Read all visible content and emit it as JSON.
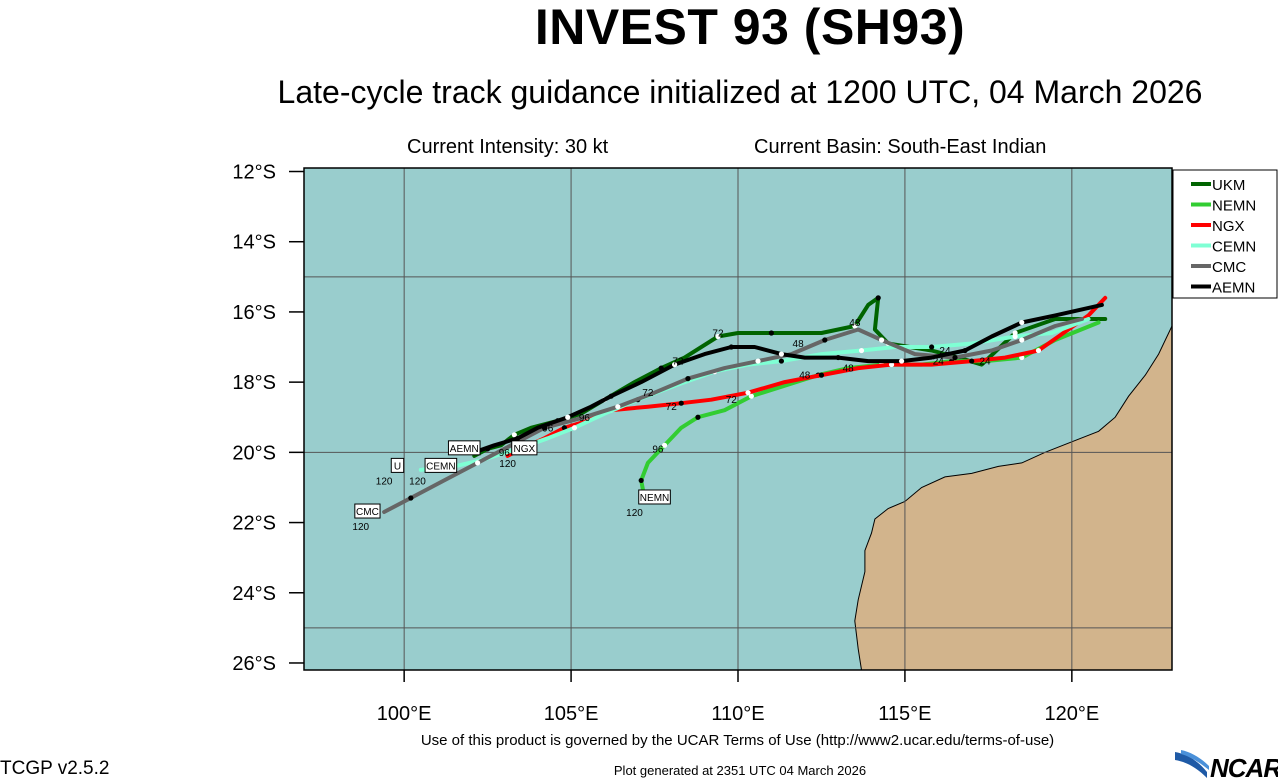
{
  "header": {
    "title": "INVEST 93 (SH93)",
    "subtitle": "Late-cycle track guidance initialized at 1200 UTC, 04 March 2026",
    "intensity": "Current Intensity: 30 kt",
    "basin": "Current Basin: South-East Indian"
  },
  "footer": {
    "terms": "Use of this product is governed by the UCAR Terms of Use (http://www2.ucar.edu/terms-of-use)",
    "generated": "Plot generated at 2351 UTC   04 March 2026",
    "version": "TCGP v2.5.2",
    "logo": "NCAR"
  },
  "colors": {
    "ocean": "#99cdcd",
    "land": "#d2b48c",
    "grid": "#555555"
  },
  "chart_data": {
    "type": "line",
    "title": "INVEST 93 (SH93)",
    "xlim": [
      97,
      123
    ],
    "ylim": [
      -26.2,
      -11.9
    ],
    "x_ticks": [
      100,
      105,
      110,
      115,
      120
    ],
    "x_tick_labels": [
      "100°E",
      "105°E",
      "110°E",
      "115°E",
      "120°E"
    ],
    "y_ticks": [
      -12,
      -14,
      -16,
      -18,
      -20,
      -22,
      -24,
      -26
    ],
    "y_tick_labels": [
      "12°S",
      "14°S",
      "16°S",
      "18°S",
      "20°S",
      "22°S",
      "24°S",
      "26°S"
    ],
    "legend_position": "right",
    "series": [
      {
        "name": "UKM",
        "color": "#006400",
        "width": 4,
        "points": [
          [
            121,
            -16.2
          ],
          [
            119.5,
            -16.2
          ],
          [
            118.3,
            -16.6
          ],
          [
            117.3,
            -17.5
          ],
          [
            116.6,
            -17.3
          ],
          [
            115.8,
            -17.1
          ],
          [
            114.5,
            -16.9
          ],
          [
            114.1,
            -16.5
          ],
          [
            114.2,
            -15.6
          ],
          [
            113.9,
            -15.8
          ],
          [
            113.5,
            -16.4
          ],
          [
            112.5,
            -16.6
          ],
          [
            111,
            -16.6
          ],
          [
            110,
            -16.6
          ],
          [
            109.4,
            -16.7
          ],
          [
            108.4,
            -17.3
          ],
          [
            107.7,
            -17.6
          ],
          [
            106.9,
            -18
          ],
          [
            106,
            -18.5
          ],
          [
            105.3,
            -18.9
          ],
          [
            104.6,
            -19.1
          ],
          [
            103.8,
            -19.3
          ],
          [
            103.3,
            -19.5
          ],
          [
            102.9,
            -19.8
          ],
          [
            102.5,
            -19.9
          ],
          [
            102.1,
            -20.1
          ]
        ],
        "labels": [
          {
            "x": 109.4,
            "y": -16.7,
            "text": "72"
          },
          {
            "x": 113.5,
            "y": -16.4,
            "text": "48"
          },
          {
            "x": 116.2,
            "y": -17.2,
            "text": "24"
          }
        ]
      },
      {
        "name": "NEMN",
        "color": "#32cd32",
        "width": 4,
        "points": [
          [
            120.8,
            -16.3
          ],
          [
            119.5,
            -16.8
          ],
          [
            118.5,
            -17.3
          ],
          [
            117.4,
            -17.4
          ],
          [
            116.4,
            -17.4
          ],
          [
            115.5,
            -17.5
          ],
          [
            114.3,
            -17.5
          ],
          [
            113.3,
            -17.6
          ],
          [
            112.4,
            -17.8
          ],
          [
            111.4,
            -18.1
          ],
          [
            110.4,
            -18.4
          ],
          [
            109.6,
            -18.8
          ],
          [
            108.8,
            -19
          ],
          [
            108.3,
            -19.3
          ],
          [
            107.8,
            -19.8
          ],
          [
            107.3,
            -20.3
          ],
          [
            107.1,
            -20.8
          ],
          [
            107.2,
            -21.3
          ]
        ],
        "labels": [
          {
            "x": 109.8,
            "y": -18.6,
            "text": "72"
          },
          {
            "x": 107.6,
            "y": -20,
            "text": "96"
          },
          {
            "x": 113.3,
            "y": -17.7,
            "text": "48"
          },
          {
            "x": 117.4,
            "y": -17.5,
            "text": "24"
          }
        ],
        "tag": {
          "x": 107.5,
          "y": -21.3,
          "text": "NEMN"
        },
        "end_label": {
          "x": 106.9,
          "y": -21.7,
          "text": "120"
        }
      },
      {
        "name": "NGX",
        "color": "#ff0000",
        "width": 4,
        "points": [
          [
            121,
            -15.6
          ],
          [
            120.5,
            -16.1
          ],
          [
            119,
            -17.1
          ],
          [
            118,
            -17.3
          ],
          [
            117,
            -17.4
          ],
          [
            115.8,
            -17.5
          ],
          [
            114.6,
            -17.5
          ],
          [
            113.6,
            -17.6
          ],
          [
            112.5,
            -17.8
          ],
          [
            111.4,
            -18
          ],
          [
            110.3,
            -18.3
          ],
          [
            109.2,
            -18.5
          ],
          [
            108.3,
            -18.6
          ],
          [
            107.3,
            -18.7
          ],
          [
            106.2,
            -18.8
          ],
          [
            105.5,
            -19.1
          ],
          [
            104.8,
            -19.3
          ],
          [
            104.2,
            -19.6
          ],
          [
            103.5,
            -19.9
          ],
          [
            103.1,
            -20.1
          ]
        ],
        "labels": [
          {
            "x": 108,
            "y": -18.8,
            "text": "72"
          },
          {
            "x": 112,
            "y": -17.9,
            "text": "48"
          },
          {
            "x": 116,
            "y": -17.5,
            "text": "24"
          },
          {
            "x": 104.3,
            "y": -19.4,
            "text": "96"
          }
        ],
        "tag": {
          "x": 103.6,
          "y": -19.9,
          "text": "NGX"
        },
        "end_label": {
          "x": 103.1,
          "y": -20.3,
          "text": "120"
        }
      },
      {
        "name": "CEMN",
        "color": "#7fffd4",
        "width": 4,
        "points": [
          [
            120.5,
            -16.2
          ],
          [
            119.4,
            -16.6
          ],
          [
            118.3,
            -16.7
          ],
          [
            117,
            -16.9
          ],
          [
            115.8,
            -17
          ],
          [
            114.7,
            -17
          ],
          [
            113.7,
            -17.1
          ],
          [
            112.5,
            -17.2
          ],
          [
            111.3,
            -17.4
          ],
          [
            110.3,
            -17.5
          ],
          [
            109.3,
            -17.7
          ],
          [
            108.1,
            -18.1
          ],
          [
            107,
            -18.5
          ],
          [
            106,
            -18.9
          ],
          [
            105.1,
            -19.3
          ],
          [
            104.3,
            -19.6
          ],
          [
            103.4,
            -19.9
          ],
          [
            102.4,
            -20.2
          ],
          [
            101.5,
            -20.4
          ],
          [
            100.5,
            -20.5
          ]
        ],
        "labels": [],
        "tag": {
          "x": 101.1,
          "y": -20.4,
          "text": "CEMN"
        },
        "end_label": {
          "x": 100.4,
          "y": -20.8,
          "text": "120"
        }
      },
      {
        "name": "CMC",
        "color": "#666666",
        "width": 4,
        "points": [
          [
            120.3,
            -16.2
          ],
          [
            119.5,
            -16.4
          ],
          [
            118.5,
            -16.8
          ],
          [
            117.6,
            -17.1
          ],
          [
            116.5,
            -17.3
          ],
          [
            115.3,
            -17.2
          ],
          [
            114.3,
            -16.8
          ],
          [
            113.6,
            -16.5
          ],
          [
            112.6,
            -16.8
          ],
          [
            111.6,
            -17.2
          ],
          [
            110.6,
            -17.4
          ],
          [
            109.6,
            -17.6
          ],
          [
            108.5,
            -17.9
          ],
          [
            107.5,
            -18.3
          ],
          [
            106.4,
            -18.7
          ],
          [
            105.4,
            -19
          ],
          [
            104.2,
            -19.3
          ],
          [
            103.2,
            -19.8
          ],
          [
            102.2,
            -20.3
          ],
          [
            101.2,
            -20.8
          ],
          [
            100.2,
            -21.3
          ],
          [
            99.4,
            -21.7
          ]
        ],
        "labels": [
          {
            "x": 107.3,
            "y": -18.4,
            "text": "72"
          },
          {
            "x": 103,
            "y": -20.1,
            "text": "96"
          }
        ],
        "tag": {
          "x": 98.9,
          "y": -21.7,
          "text": "CMC"
        },
        "end_label": {
          "x": 98.7,
          "y": -22.1,
          "text": "120"
        }
      },
      {
        "name": "AEMN",
        "color": "#000000",
        "width": 4,
        "points": [
          [
            120.9,
            -15.8
          ],
          [
            119.5,
            -16.1
          ],
          [
            118.5,
            -16.3
          ],
          [
            117.6,
            -16.7
          ],
          [
            116.8,
            -17.1
          ],
          [
            115.8,
            -17.3
          ],
          [
            114.9,
            -17.4
          ],
          [
            113.9,
            -17.4
          ],
          [
            113,
            -17.3
          ],
          [
            112,
            -17.3
          ],
          [
            111.3,
            -17.2
          ],
          [
            110.5,
            -17
          ],
          [
            109.8,
            -17
          ],
          [
            109,
            -17.2
          ],
          [
            108.1,
            -17.5
          ],
          [
            107.1,
            -18
          ],
          [
            106.2,
            -18.4
          ],
          [
            105.6,
            -18.7
          ],
          [
            104.9,
            -19
          ],
          [
            104,
            -19.3
          ],
          [
            103.4,
            -19.6
          ],
          [
            102.7,
            -19.8
          ],
          [
            102.1,
            -20
          ]
        ],
        "labels": [
          {
            "x": 108.2,
            "y": -17.5,
            "text": "72"
          },
          {
            "x": 111.8,
            "y": -17,
            "text": "48"
          },
          {
            "x": 105.4,
            "y": -19.1,
            "text": "96"
          }
        ],
        "tag": {
          "x": 101.8,
          "y": -19.9,
          "text": "AEMN"
        },
        "end_label": {
          "x": 101.3,
          "y": -20.3,
          "text": "120"
        }
      }
    ],
    "extra_tags": [
      {
        "x": 99.8,
        "y": -20.4,
        "text": "U"
      }
    ],
    "extra_labels": [
      {
        "x": 99.4,
        "y": -20.8,
        "text": "120"
      }
    ]
  }
}
